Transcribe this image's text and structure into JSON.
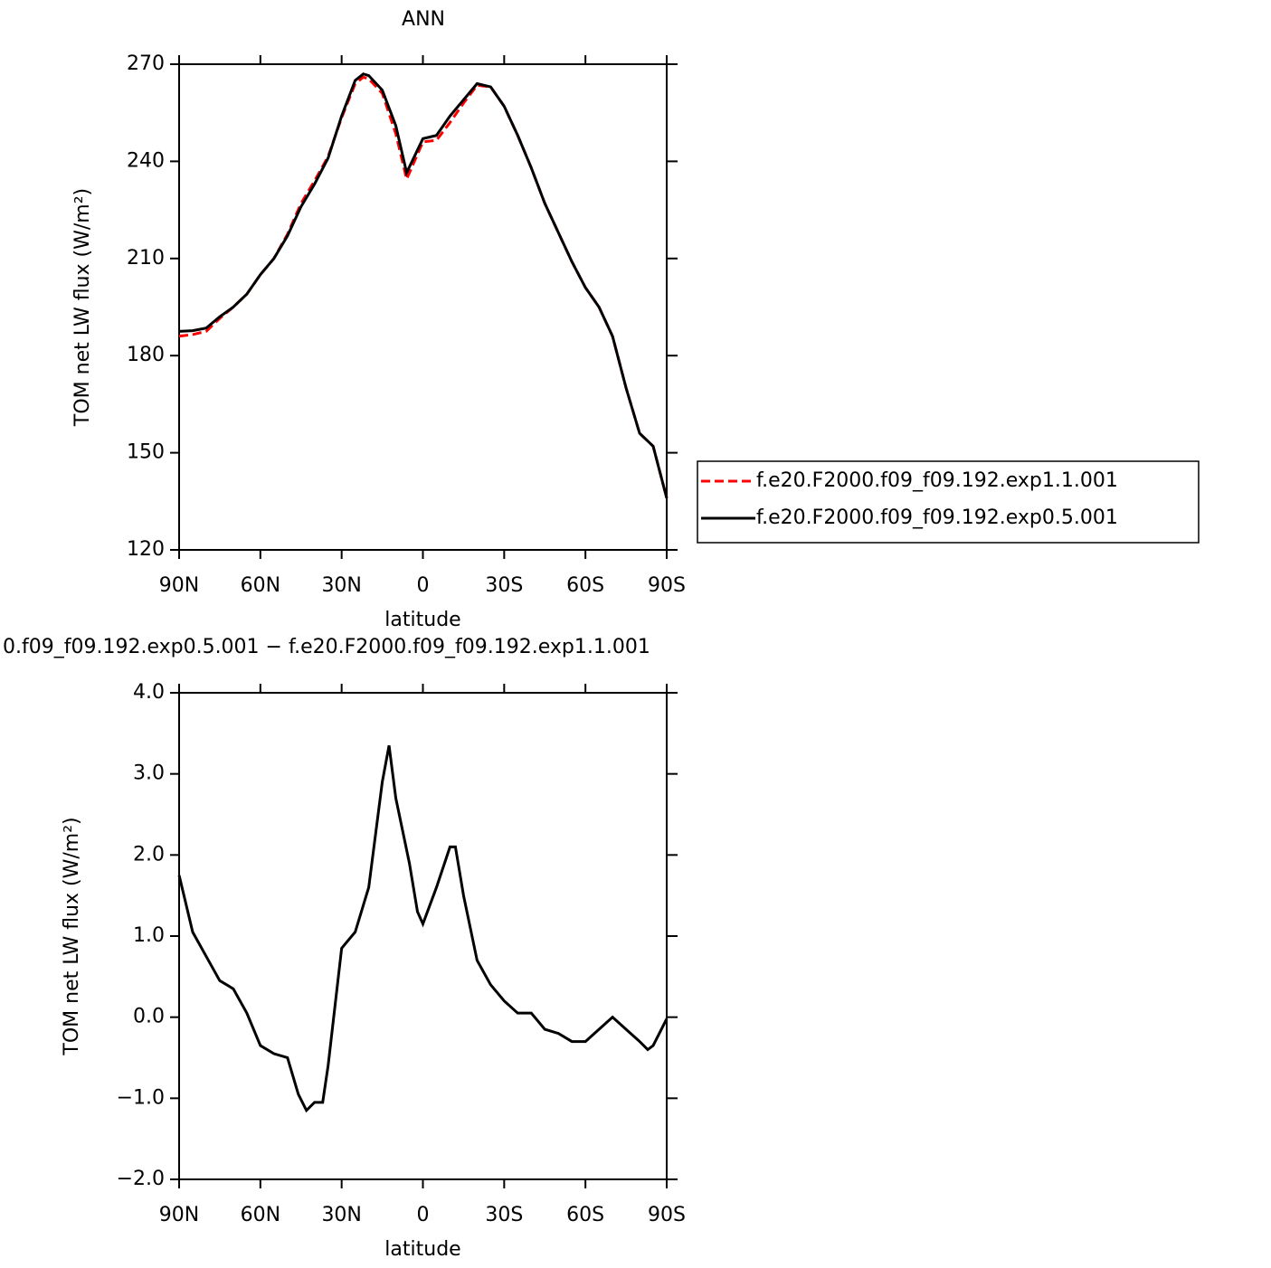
{
  "chart_data": [
    {
      "type": "line",
      "title": "ANN",
      "x_label": "latitude",
      "y_label": "TOM net LW flux (W/m²)",
      "x": [
        90,
        85,
        80,
        75,
        70,
        65,
        60,
        55,
        50,
        45,
        40,
        35,
        30,
        25,
        22,
        20,
        15,
        10,
        6,
        0,
        -5,
        -10,
        -15,
        -20,
        -25,
        -30,
        -35,
        -40,
        -45,
        -50,
        -55,
        -60,
        -65,
        -70,
        -75,
        -80,
        -85,
        -90
      ],
      "series": [
        {
          "name": "f.e20.F2000.f09_f09.192.exp1.1.001",
          "color": "#ff0000",
          "linestyle": "dashed",
          "values": [
            186,
            186.5,
            187.5,
            191.5,
            195,
            199,
            205,
            210,
            217.5,
            227,
            234,
            241.5,
            253.5,
            264,
            266,
            265.5,
            261,
            248.5,
            234.5,
            246,
            246.5,
            252,
            258,
            263.5,
            263,
            257,
            248,
            238,
            227,
            218,
            209,
            201,
            195,
            186,
            170,
            156,
            152,
            136
          ]
        },
        {
          "name": "f.e20.F2000.f09_f09.192.exp0.5.001",
          "color": "#000000",
          "linestyle": "solid",
          "values": [
            187.5,
            187.7,
            188.5,
            192,
            195,
            199,
            205,
            210,
            217,
            226,
            233,
            241,
            254,
            265,
            267,
            266.5,
            262,
            251,
            236.5,
            247,
            248,
            254,
            259,
            264,
            263,
            257,
            248,
            238,
            227,
            218,
            209,
            201,
            195,
            186,
            170,
            156,
            152,
            136
          ]
        }
      ],
      "xlim": [
        90,
        -90
      ],
      "xticks": [
        {
          "value": 90,
          "label": "90N"
        },
        {
          "value": 60,
          "label": "60N"
        },
        {
          "value": 30,
          "label": "30N"
        },
        0,
        {
          "value": -30,
          "label": "30S"
        },
        {
          "value": -60,
          "label": "60S"
        },
        {
          "value": -90,
          "label": "90S"
        }
      ],
      "ylim": [
        120,
        270
      ],
      "yticks": [
        120,
        150,
        180,
        210,
        240,
        270
      ],
      "legend": "right"
    },
    {
      "type": "line",
      "title": "0.f09_f09.192.exp0.5.001 − f.e20.F2000.f09_f09.192.exp1.1.001",
      "x_label": "latitude",
      "y_label": "TOM net LW flux (W/m²)",
      "x": [
        90,
        85,
        80,
        75,
        70,
        65,
        60,
        55,
        50,
        46,
        43,
        40,
        37,
        35,
        30,
        25,
        20,
        15,
        12.5,
        10,
        5,
        2,
        0,
        -5,
        -10,
        -12,
        -15,
        -20,
        -25,
        -30,
        -35,
        -40,
        -45,
        -50,
        -55,
        -60,
        -65,
        -70,
        -75,
        -80,
        -83,
        -85,
        -90
      ],
      "values": [
        1.75,
        1.05,
        0.75,
        0.45,
        0.35,
        0.05,
        -0.35,
        -0.45,
        -0.5,
        -0.95,
        -1.15,
        -1.05,
        -1.05,
        -0.6,
        0.85,
        1.05,
        1.6,
        2.9,
        3.35,
        2.7,
        1.9,
        1.3,
        1.15,
        1.6,
        2.1,
        2.1,
        1.5,
        0.7,
        0.4,
        0.2,
        0.05,
        0.05,
        -0.15,
        -0.2,
        -0.3,
        -0.3,
        -0.15,
        0.0,
        -0.15,
        -0.3,
        -0.4,
        -0.35,
        -0.02
      ],
      "color": "#000000",
      "xlim": [
        90,
        -90
      ],
      "xticks": [
        {
          "value": 90,
          "label": "90N"
        },
        {
          "value": 60,
          "label": "60N"
        },
        {
          "value": 30,
          "label": "30N"
        },
        0,
        {
          "value": -30,
          "label": "30S"
        },
        {
          "value": -60,
          "label": "60S"
        },
        {
          "value": -90,
          "label": "90S"
        }
      ],
      "ylim": [
        -2,
        4
      ],
      "yticks": [
        {
          "value": -2,
          "label": "−2.0"
        },
        {
          "value": -1,
          "label": "−1.0"
        },
        {
          "value": 0,
          "label": "0.0"
        },
        {
          "value": 1,
          "label": "1.0"
        },
        {
          "value": 2,
          "label": "2.0"
        },
        {
          "value": 3,
          "label": "3.0"
        },
        {
          "value": 4,
          "label": "4.0"
        }
      ]
    }
  ]
}
